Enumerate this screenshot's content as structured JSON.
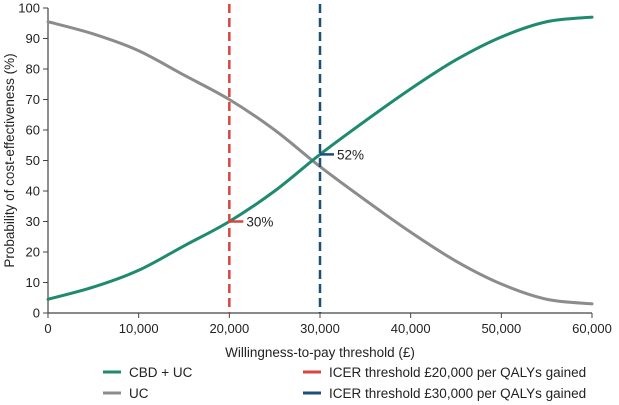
{
  "chart_data": {
    "type": "line",
    "title": "",
    "xlabel": "Willingness-to-pay threshold (£)",
    "ylabel": "Probability of cost-effectiveness (%)",
    "xlim": [
      0,
      60000
    ],
    "ylim": [
      0,
      100
    ],
    "x_ticks": [
      0,
      10000,
      20000,
      30000,
      40000,
      50000,
      60000
    ],
    "x_tick_labels": [
      "0",
      "10,000",
      "20,000",
      "30,000",
      "40,000",
      "50,000",
      "60,000"
    ],
    "y_ticks": [
      0,
      10,
      20,
      30,
      40,
      50,
      60,
      70,
      80,
      90,
      100
    ],
    "y_tick_labels": [
      "0",
      "10",
      "20",
      "30",
      "40",
      "50",
      "60",
      "70",
      "80",
      "90",
      "100"
    ],
    "grid": false,
    "legend_position": "bottom",
    "series": [
      {
        "name": "CBD + UC",
        "color": "#1e8a6e",
        "x": [
          0,
          5000,
          10000,
          15000,
          20000,
          25000,
          30000,
          35000,
          40000,
          45000,
          50000,
          55000,
          60000
        ],
        "y": [
          4.5,
          8.5,
          14,
          22,
          30,
          40,
          52,
          63,
          73.5,
          83,
          90.5,
          95.5,
          97
        ]
      },
      {
        "name": "UC",
        "color": "#8c8c8c",
        "x": [
          0,
          5000,
          10000,
          15000,
          20000,
          25000,
          30000,
          35000,
          40000,
          45000,
          50000,
          55000,
          60000
        ],
        "y": [
          95.5,
          91.5,
          86,
          78,
          70,
          60,
          48,
          37,
          26.5,
          17,
          9.5,
          4.5,
          3
        ]
      }
    ],
    "reference_lines": [
      {
        "name": "ICER threshold £20,000 per QALYs gained",
        "x": 20000,
        "color": "#d9453d",
        "dash": true
      },
      {
        "name": "ICER threshold £30,000 per QALYs gained",
        "x": 30000,
        "color": "#1f4e79",
        "dash": true
      }
    ],
    "annotations": [
      {
        "text": "30%",
        "x": 20000,
        "y": 30,
        "color": "#d9453d"
      },
      {
        "text": "52%",
        "x": 30000,
        "y": 52,
        "color": "#1f4e79"
      }
    ]
  }
}
